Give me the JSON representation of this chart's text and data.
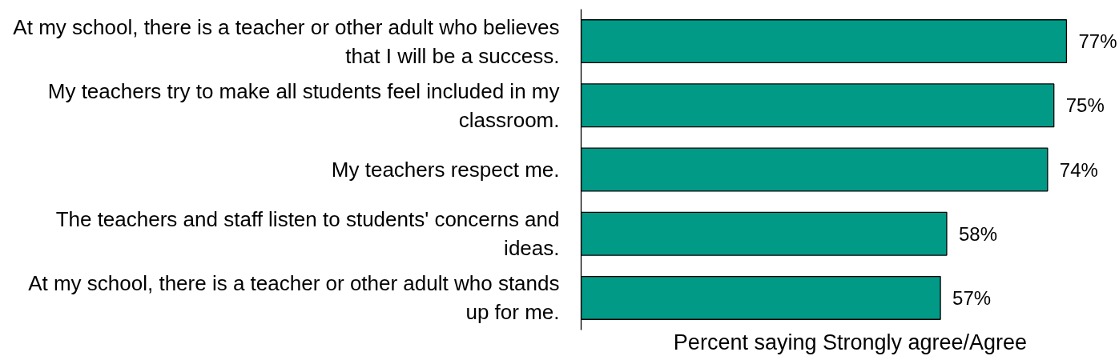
{
  "chart_data": {
    "type": "bar",
    "orientation": "horizontal",
    "categories": [
      "At my school, there is a teacher or other adult who believes that I will be a success.",
      "My teachers try to make all students feel included in my classroom.",
      "My teachers respect me.",
      "The teachers and staff listen to students' concerns and ideas.",
      "At my school, there is a teacher or other adult who stands up for me."
    ],
    "values": [
      77,
      75,
      74,
      58,
      57
    ],
    "value_labels": [
      "77%",
      "75%",
      "74%",
      "58%",
      "57%"
    ],
    "color": "#009a87",
    "xlabel": "Percent saying Strongly agree/Agree",
    "tick_labels": "y"
  }
}
